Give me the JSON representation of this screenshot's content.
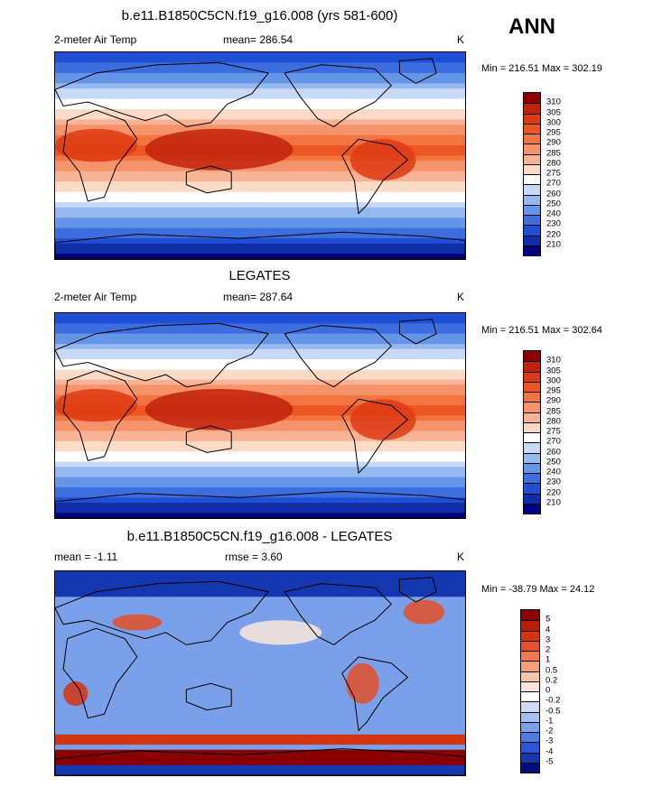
{
  "season": "ANN",
  "coastline_color": "#000000",
  "panels": [
    {
      "title": "b.e11.B1850C5CN.f19_g16.008 (yrs 581-600)",
      "left_label": "2-meter Air Temp",
      "mid_label": "mean= 286.54",
      "right_label": "K",
      "minmax": "Min = 216.51 Max = 302.19",
      "colorbar": {
        "labels": [
          "310",
          "305",
          "300",
          "295",
          "290",
          "285",
          "280",
          "275",
          "270",
          "260",
          "250",
          "240",
          "230",
          "220",
          "210"
        ],
        "colors": [
          "#8b0000",
          "#c1220c",
          "#dd3a14",
          "#ec5622",
          "#f27440",
          "#f5936a",
          "#f8b394",
          "#fbdac6",
          "#ffffff",
          "#c8d9f7",
          "#95b8ef",
          "#6495e6",
          "#3c6ee0",
          "#1e4fd5",
          "#0f2ea8",
          "#000080"
        ]
      }
    },
    {
      "title": "LEGATES",
      "left_label": "2-meter Air Temp",
      "mid_label": "mean= 287.64",
      "right_label": "K",
      "minmax": "Min = 216.51 Max = 302.64",
      "colorbar": {
        "labels": [
          "310",
          "305",
          "300",
          "295",
          "290",
          "285",
          "280",
          "275",
          "270",
          "260",
          "250",
          "240",
          "230",
          "220",
          "210"
        ],
        "colors": [
          "#8b0000",
          "#c1220c",
          "#dd3a14",
          "#ec5622",
          "#f27440",
          "#f5936a",
          "#f8b394",
          "#fbdac6",
          "#ffffff",
          "#c8d9f7",
          "#95b8ef",
          "#6495e6",
          "#3c6ee0",
          "#1e4fd5",
          "#0f2ea8",
          "#000080"
        ]
      }
    },
    {
      "title": "b.e11.B1850C5CN.f19_g16.008 - LEGATES",
      "left_label": "mean =  -1.11",
      "mid_label": "rmse =   3.60",
      "right_label": "K",
      "minmax": "Min = -38.79 Max =  24.12",
      "colorbar": {
        "labels": [
          "5",
          "4",
          "3",
          "2",
          "1",
          "0.5",
          "0.2",
          "0",
          "-0.2",
          "-0.5",
          "-1",
          "-2",
          "-3",
          "-4",
          "-5"
        ],
        "colors": [
          "#8b0000",
          "#b81d08",
          "#d23414",
          "#e4502a",
          "#ef7a52",
          "#f5a07c",
          "#f9c4aa",
          "#fce6da",
          "#ffffff",
          "#cddcf6",
          "#a4c0f0",
          "#7aa0ea",
          "#4f7ce2",
          "#2b57d6",
          "#1538b0",
          "#00107a"
        ]
      }
    }
  ]
}
